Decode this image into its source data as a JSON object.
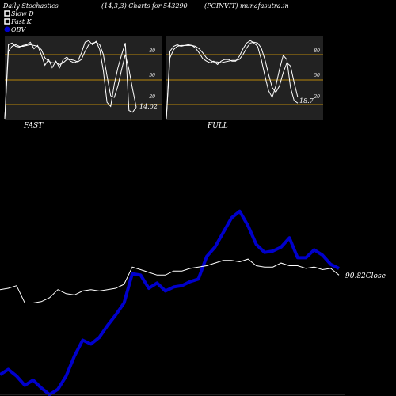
{
  "header": {
    "title": "Daily Stochastics",
    "params": "(14,3,3) Charts for 543290",
    "symbol": "(PGINVIT) munafasutra.in"
  },
  "legend": {
    "items": [
      {
        "label": "Slow  D",
        "color": "#ffffff",
        "icon": "hollow-square"
      },
      {
        "label": "Fast K",
        "color": "#ffffff",
        "icon": "hollow-square"
      },
      {
        "label": "OBV",
        "color": "#0000cc",
        "icon": "filled-circle"
      }
    ]
  },
  "colors": {
    "background": "#000000",
    "panel": "#222222",
    "level_line": "#b8860b",
    "stoch_line": "#ffffff",
    "obv_line": "#0000cc",
    "price_line": "#ffffff"
  },
  "chart_data": [
    {
      "type": "line",
      "panel": "FAST",
      "title": "FAST",
      "ylim": [
        0,
        100
      ],
      "y_ticks": [
        80,
        50,
        20
      ],
      "levels": [
        80,
        50,
        20
      ],
      "last_value_label": "14.02",
      "series": [
        {
          "role": "fast-k",
          "values": [
            0,
            90,
            92,
            88,
            87,
            89,
            90,
            93,
            85,
            89,
            78,
            65,
            72,
            62,
            70,
            62,
            72,
            75,
            70,
            68,
            70,
            80,
            93,
            95,
            90,
            94,
            84,
            58,
            20,
            15,
            42,
            62,
            78,
            92,
            10,
            8,
            14
          ]
        },
        {
          "role": "slow-d",
          "values": [
            0,
            82,
            88,
            90,
            88,
            88,
            89,
            90,
            89,
            88,
            84,
            74,
            70,
            68,
            68,
            66,
            68,
            72,
            72,
            71,
            69,
            72,
            82,
            90,
            92,
            93,
            90,
            78,
            52,
            28,
            26,
            40,
            60,
            78,
            60,
            36,
            14
          ]
        }
      ]
    },
    {
      "type": "line",
      "panel": "FULL",
      "title": "FULL",
      "ylim": [
        0,
        100
      ],
      "y_ticks": [
        80,
        50,
        20
      ],
      "levels": [
        80,
        50,
        20
      ],
      "last_value_label": "18.7",
      "series": [
        {
          "role": "full-k",
          "values": [
            0,
            82,
            88,
            90,
            88,
            89,
            90,
            89,
            86,
            80,
            73,
            70,
            68,
            70,
            66,
            70,
            72,
            72,
            70,
            70,
            76,
            85,
            92,
            95,
            92,
            88,
            72,
            52,
            34,
            26,
            40,
            60,
            77,
            72,
            38,
            22,
            19
          ]
        },
        {
          "role": "full-d",
          "values": [
            0,
            74,
            84,
            88,
            89,
            89,
            89,
            89,
            88,
            85,
            80,
            74,
            71,
            69,
            69,
            68,
            69,
            70,
            71,
            71,
            72,
            78,
            86,
            92,
            93,
            92,
            86,
            72,
            54,
            38,
            32,
            40,
            56,
            68,
            64,
            44,
            26
          ]
        }
      ]
    },
    {
      "type": "line",
      "panel": "price-obv",
      "close_label": "90.82Close",
      "series": [
        {
          "role": "price",
          "values": [
            80,
            81,
            83,
            70,
            70,
            71,
            74,
            80,
            77,
            76,
            79,
            80,
            79,
            80,
            81,
            84,
            97,
            95,
            93,
            91,
            91,
            94,
            94,
            96,
            97,
            98,
            100,
            102,
            102,
            101,
            103,
            98,
            97,
            97,
            100,
            98,
            98,
            96,
            97,
            95,
            96,
            91
          ]
        },
        {
          "role": "obv",
          "values": [
            16,
            20,
            15,
            8,
            12,
            6,
            1,
            5,
            15,
            30,
            42,
            39,
            44,
            53,
            61,
            70,
            92,
            91,
            81,
            85,
            79,
            82,
            83,
            86,
            88,
            105,
            112,
            123,
            134,
            139,
            128,
            114,
            108,
            109,
            112,
            119,
            104,
            104,
            110,
            106,
            99,
            96
          ]
        }
      ]
    }
  ]
}
